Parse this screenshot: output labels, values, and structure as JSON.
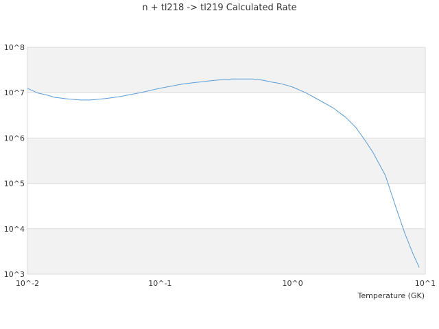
{
  "chart_data": {
    "type": "line",
    "title": "n + tl218 -> tl219 Calculated Rate",
    "xlabel": "Temperature (GK)",
    "ylabel": "",
    "x_scale": "log",
    "y_scale": "log",
    "xlim": [
      0.01,
      10
    ],
    "ylim": [
      1000,
      100000000
    ],
    "x_ticks": [
      "10^-2",
      "10^-1",
      "10^0",
      "10^1"
    ],
    "y_ticks": [
      "10^3",
      "10^4",
      "10^5",
      "10^6",
      "10^7",
      "10^8"
    ],
    "grid": true,
    "legend": "none",
    "series": [
      {
        "color": "#5b9bd5",
        "x": [
          0.01,
          0.012,
          0.014,
          0.016,
          0.02,
          0.025,
          0.03,
          0.04,
          0.05,
          0.06,
          0.07,
          0.08,
          0.09,
          0.1,
          0.12,
          0.15,
          0.2,
          0.25,
          0.3,
          0.35,
          0.4,
          0.5,
          0.6,
          0.7,
          0.8,
          0.9,
          1.0,
          1.25,
          1.5,
          2.0,
          2.5,
          3.0,
          3.5,
          4.0,
          5.0,
          6.0,
          7.0,
          8.0,
          9.0
        ],
        "y": [
          12500000,
          9800000,
          8900000,
          7900000,
          7300000,
          6900000,
          6900000,
          7500000,
          8200000,
          9100000,
          9900000,
          10800000,
          11700000,
          12500000,
          13800000,
          15600000,
          17200000,
          18500000,
          19500000,
          20000000,
          20000000,
          20000000,
          18800000,
          17000000,
          16000000,
          14600000,
          13300000,
          10000000,
          7500000,
          4700000,
          2900000,
          1700000,
          900000,
          500000,
          150000,
          30000,
          8000,
          3000,
          1400
        ]
      }
    ]
  }
}
